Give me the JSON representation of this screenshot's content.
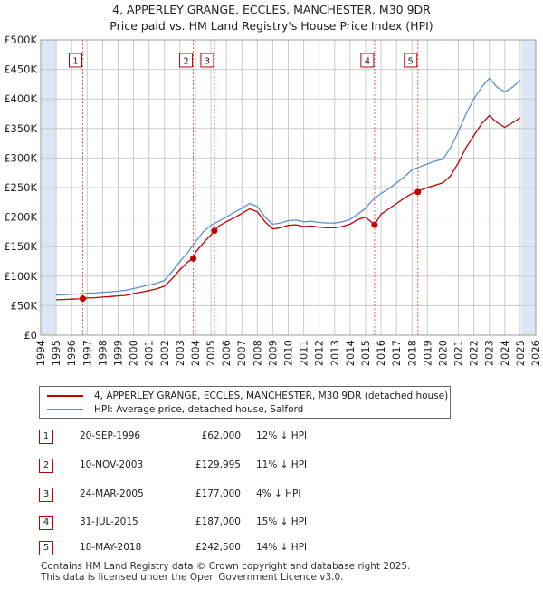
{
  "title_line1": "4, APPERLEY GRANGE, ECCLES, MANCHESTER, M30 9DR",
  "title_line2": "Price paid vs. HM Land Registry's House Price Index (HPI)",
  "legend": {
    "property_label": "4, APPERLEY GRANGE, ECCLES, MANCHESTER, M30 9DR (detached house)",
    "hpi_label": "HPI: Average price, detached house, Salford"
  },
  "transactions": [
    {
      "num": "1",
      "date": "20-SEP-1996",
      "price": "£62,000",
      "hpi": "12% ↓ HPI"
    },
    {
      "num": "2",
      "date": "10-NOV-2003",
      "price": "£129,995",
      "hpi": "11% ↓ HPI"
    },
    {
      "num": "3",
      "date": "24-MAR-2005",
      "price": "£177,000",
      "hpi": "4% ↓ HPI"
    },
    {
      "num": "4",
      "date": "31-JUL-2015",
      "price": "£187,000",
      "hpi": "15% ↓ HPI"
    },
    {
      "num": "5",
      "date": "18-MAY-2018",
      "price": "£242,500",
      "hpi": "14% ↓ HPI"
    }
  ],
  "footer_line1": "Contains HM Land Registry data © Crown copyright and database right 2025.",
  "footer_line2": "This data is licensed under the Open Government Licence v3.0.",
  "colors": {
    "property": "#c00000",
    "hpi": "#5b8fd0",
    "shade": "#dde6f4",
    "grid": "#cccccc",
    "vline": "#e06060"
  },
  "chart_data": {
    "type": "line",
    "title": "Price paid vs. HM Land Registry's House Price Index (HPI)",
    "xlabel": "",
    "ylabel": "",
    "xlim": [
      1994,
      2026
    ],
    "ylim": [
      0,
      500000
    ],
    "y_ticks": [
      0,
      50000,
      100000,
      150000,
      200000,
      250000,
      300000,
      350000,
      400000,
      450000,
      500000
    ],
    "y_tick_labels": [
      "£0",
      "£50K",
      "£100K",
      "£150K",
      "£200K",
      "£250K",
      "£300K",
      "£350K",
      "£400K",
      "£450K",
      "£500K"
    ],
    "x_ticks": [
      1994,
      1995,
      1996,
      1997,
      1998,
      1999,
      2000,
      2001,
      2002,
      2003,
      2004,
      2005,
      2006,
      2007,
      2008,
      2009,
      2010,
      2011,
      2012,
      2013,
      2014,
      2015,
      2016,
      2017,
      2018,
      2019,
      2020,
      2021,
      2022,
      2023,
      2024,
      2025,
      2026
    ],
    "x_tick_labels": [
      "1994",
      "1995",
      "1996",
      "1997",
      "1998",
      "1999",
      "2000",
      "2001",
      "2002",
      "2003",
      "2004",
      "2005",
      "2006",
      "2007",
      "2008",
      "2009",
      "2010",
      "2011",
      "2012",
      "2013",
      "2014",
      "2015",
      "2016",
      "2017",
      "2018",
      "2019",
      "2020",
      "2021",
      "2022",
      "2023",
      "2024",
      "2025",
      "2026"
    ],
    "data_start": 1995,
    "data_end": 2025.1,
    "sale_markers": [
      {
        "label": "1",
        "year": 1996.72,
        "price": 62000
      },
      {
        "label": "2",
        "year": 2003.86,
        "price": 129995
      },
      {
        "label": "3",
        "year": 2005.23,
        "price": 177000
      },
      {
        "label": "4",
        "year": 2015.58,
        "price": 187000
      },
      {
        "label": "5",
        "year": 2018.38,
        "price": 242500
      }
    ],
    "series": [
      {
        "name": "HPI: Average price, detached house, Salford",
        "x": [
          1995.0,
          1995.5,
          1996.0,
          1996.5,
          1997.0,
          1997.5,
          1998.0,
          1998.5,
          1999.0,
          1999.5,
          2000.0,
          2000.5,
          2001.0,
          2001.5,
          2002.0,
          2002.5,
          2003.0,
          2003.5,
          2004.0,
          2004.5,
          2005.0,
          2005.5,
          2006.0,
          2006.5,
          2007.0,
          2007.5,
          2008.0,
          2008.5,
          2009.0,
          2009.5,
          2010.0,
          2010.5,
          2011.0,
          2011.5,
          2012.0,
          2012.5,
          2013.0,
          2013.5,
          2014.0,
          2014.5,
          2015.0,
          2015.5,
          2016.0,
          2016.5,
          2017.0,
          2017.5,
          2018.0,
          2018.5,
          2019.0,
          2019.5,
          2020.0,
          2020.5,
          2021.0,
          2021.5,
          2022.0,
          2022.5,
          2023.0,
          2023.5,
          2024.0,
          2024.5,
          2025.0
        ],
        "values": [
          68000,
          68500,
          69500,
          70000,
          71000,
          71500,
          72500,
          73500,
          74500,
          76000,
          79000,
          82000,
          85000,
          88000,
          93000,
          108000,
          125000,
          140000,
          158000,
          175000,
          186000,
          193000,
          200000,
          208000,
          215000,
          223000,
          218000,
          200000,
          188000,
          190000,
          194000,
          195000,
          192000,
          193000,
          191000,
          190000,
          190000,
          192000,
          196000,
          205000,
          215000,
          230000,
          240000,
          248000,
          258000,
          268000,
          280000,
          285000,
          290000,
          295000,
          298000,
          318000,
          345000,
          375000,
          400000,
          420000,
          435000,
          420000,
          412000,
          420000,
          432000
        ]
      },
      {
        "name": "4, APPERLEY GRANGE, ECCLES, MANCHESTER, M30 9DR (detached house)",
        "x": [
          1995.0,
          1995.5,
          1996.0,
          1996.5,
          1996.72,
          1997.0,
          1997.5,
          1998.0,
          1998.5,
          1999.0,
          1999.5,
          2000.0,
          2000.5,
          2001.0,
          2001.5,
          2002.0,
          2002.5,
          2003.0,
          2003.5,
          2003.86,
          2004.0,
          2004.5,
          2005.0,
          2005.23,
          2005.5,
          2006.0,
          2006.5,
          2007.0,
          2007.5,
          2008.0,
          2008.5,
          2009.0,
          2009.5,
          2010.0,
          2010.5,
          2011.0,
          2011.5,
          2012.0,
          2012.5,
          2013.0,
          2013.5,
          2014.0,
          2014.5,
          2015.0,
          2015.58,
          2016.0,
          2016.5,
          2017.0,
          2017.5,
          2018.0,
          2018.38,
          2018.5,
          2019.0,
          2019.5,
          2020.0,
          2020.5,
          2021.0,
          2021.5,
          2022.0,
          2022.5,
          2023.0,
          2023.5,
          2024.0,
          2024.5,
          2025.0
        ],
        "values": [
          60000,
          60500,
          61000,
          61500,
          62000,
          63000,
          63500,
          64500,
          65500,
          66500,
          67500,
          70500,
          73000,
          75500,
          78500,
          83000,
          96000,
          111000,
          124000,
          129995,
          140000,
          156000,
          170000,
          177000,
          185000,
          192000,
          199000,
          206000,
          214000,
          209000,
          192000,
          180000,
          182000,
          186000,
          187000,
          184000,
          185000,
          183000,
          182000,
          182000,
          184000,
          188000,
          196000,
          200000,
          187000,
          205000,
          214000,
          223000,
          232000,
          240000,
          242500,
          245000,
          250000,
          254000,
          258000,
          270000,
          292000,
          318000,
          338000,
          358000,
          372000,
          360000,
          352000,
          360000,
          368000
        ]
      }
    ]
  }
}
